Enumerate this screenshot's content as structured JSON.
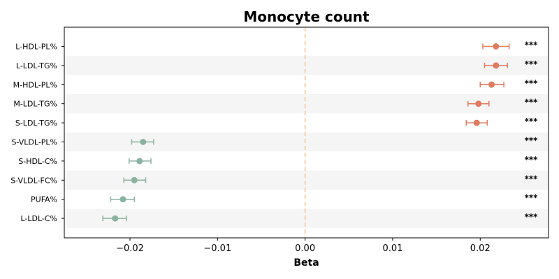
{
  "chart_data": {
    "type": "forest",
    "title": "Monocyte count",
    "xlabel": "Beta",
    "xlim": [
      -0.0275,
      0.0278
    ],
    "xticks": [
      -0.02,
      -0.01,
      0.0,
      0.01,
      0.02
    ],
    "xtick_labels": [
      "−0.02",
      "−0.01",
      "0.00",
      "0.01",
      "0.02"
    ],
    "reference_line": 0.0,
    "reference_line_color": "#f5c48a",
    "positive_color": "#e07b5f",
    "negative_color": "#8ab39f",
    "row_stripe_color": "#f5f5f5",
    "points": [
      {
        "label": "L-HDL-PL%",
        "beta": 0.0218,
        "ci_low": 0.0203,
        "ci_high": 0.0233,
        "sig": "***"
      },
      {
        "label": "L-LDL-TG%",
        "beta": 0.0218,
        "ci_low": 0.0205,
        "ci_high": 0.0231,
        "sig": "***"
      },
      {
        "label": "M-HDL-PL%",
        "beta": 0.0213,
        "ci_low": 0.02,
        "ci_high": 0.0227,
        "sig": "***"
      },
      {
        "label": "M-LDL-TG%",
        "beta": 0.0198,
        "ci_low": 0.0186,
        "ci_high": 0.021,
        "sig": "***"
      },
      {
        "label": "S-LDL-TG%",
        "beta": 0.0196,
        "ci_low": 0.0184,
        "ci_high": 0.0208,
        "sig": "***"
      },
      {
        "label": "S-VLDL-PL%",
        "beta": -0.0185,
        "ci_low": -0.0198,
        "ci_high": -0.0173,
        "sig": "***"
      },
      {
        "label": "S-HDL-C%",
        "beta": -0.0189,
        "ci_low": -0.0201,
        "ci_high": -0.0176,
        "sig": "***"
      },
      {
        "label": "S-VLDL-FC%",
        "beta": -0.0195,
        "ci_low": -0.0207,
        "ci_high": -0.0182,
        "sig": "***"
      },
      {
        "label": "PUFA%",
        "beta": -0.0208,
        "ci_low": -0.0222,
        "ci_high": -0.0195,
        "sig": "***"
      },
      {
        "label": "L-LDL-C%",
        "beta": -0.0217,
        "ci_low": -0.0231,
        "ci_high": -0.0204,
        "sig": "***"
      }
    ]
  }
}
